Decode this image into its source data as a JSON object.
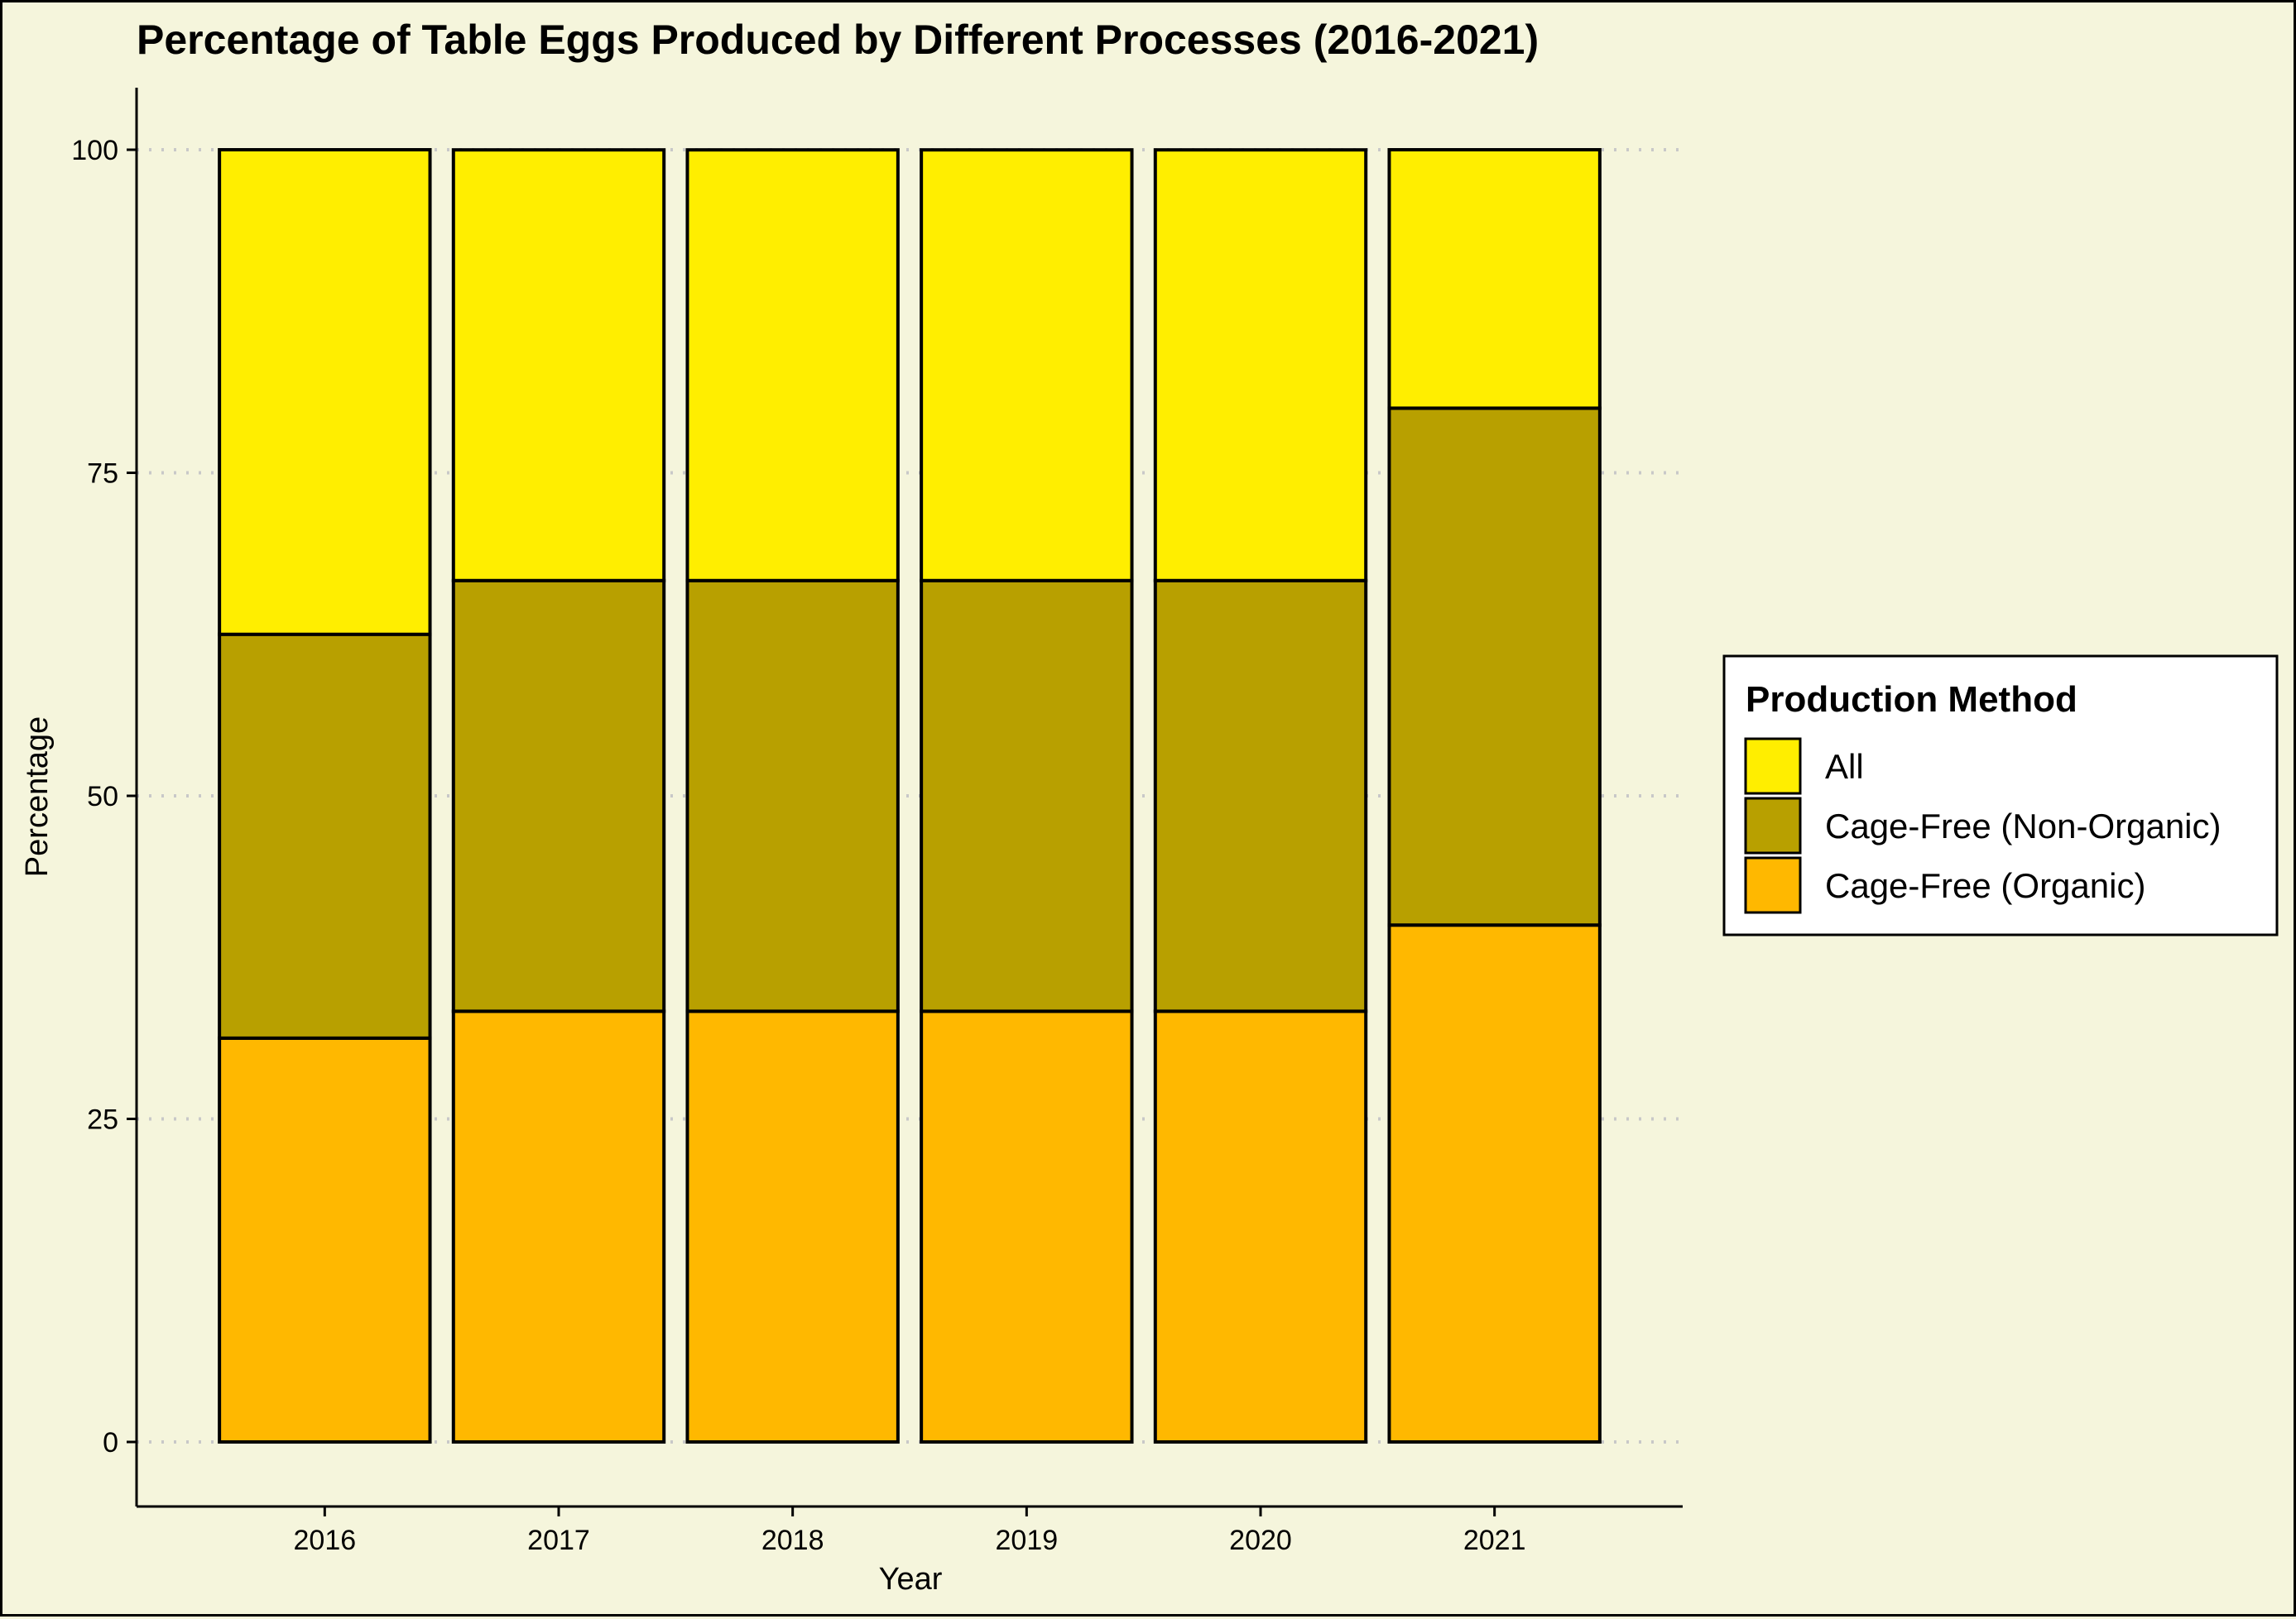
{
  "chart_data": {
    "type": "bar",
    "stacked": true,
    "title": "Percentage of Table Eggs Produced by Different Processes (2016-2021)",
    "xlabel": "Year",
    "ylabel": "Percentage",
    "ylim": [
      0,
      100
    ],
    "yticks": [
      "0",
      "25",
      "50",
      "75",
      "100"
    ],
    "grid": "horizontal dotted",
    "legend_placement": "right",
    "legend_title": "Production Method",
    "categories": [
      "2016",
      "2017",
      "2018",
      "2019",
      "2020",
      "2021"
    ],
    "series": [
      {
        "name": "Cage-Free (Organic)",
        "color": "#ffb800",
        "values": [
          31.25,
          33.33,
          33.33,
          33.33,
          33.33,
          40.0
        ]
      },
      {
        "name": "Cage-Free (Non-Organic)",
        "color": "#b8a000",
        "values": [
          31.25,
          33.33,
          33.33,
          33.33,
          33.33,
          40.0
        ]
      },
      {
        "name": "All",
        "color": "#ffee00",
        "values": [
          37.5,
          33.33,
          33.33,
          33.33,
          33.33,
          20.0
        ]
      }
    ],
    "legend_order": [
      "All",
      "Cage-Free (Non-Organic)",
      "Cage-Free (Organic)"
    ]
  }
}
